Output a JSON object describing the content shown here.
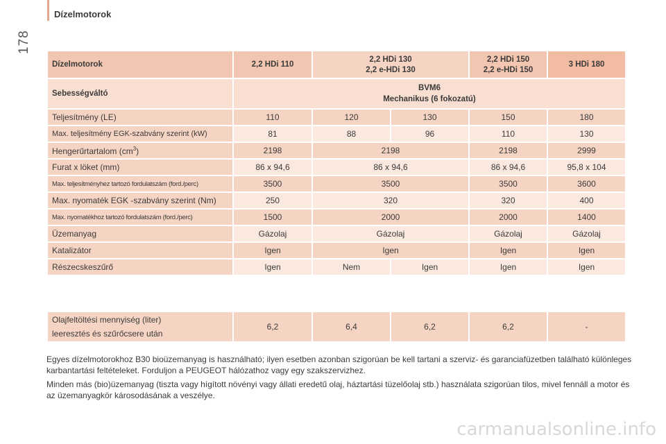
{
  "header": {
    "title": "Dízelmotorok",
    "page_number": "178"
  },
  "table": {
    "head_label": "Dízelmotorok",
    "engines": {
      "e1": [
        "2,2 HDi 110"
      ],
      "e2": [
        "2,2 HDi 130",
        "2,2 e-HDi 130"
      ],
      "e3": [
        "2,2 HDi 150",
        "2,2 e-HDi 150"
      ],
      "e4": [
        "3 HDi 180"
      ]
    },
    "gearbox": {
      "label": "Sebességváltó",
      "line1": "BVM6",
      "line2": "Mechanikus (6 fokozatú)"
    },
    "rows": [
      {
        "label": "Teljesítmény (LE)",
        "c1": "110",
        "c2a": "120",
        "c2b": "130",
        "c3": "150",
        "c4": "180"
      },
      {
        "label": "Max. teljesítmény EGK-szabvány szerint (kW)",
        "c1": "81",
        "c2a": "88",
        "c2b": "96",
        "c3": "110",
        "c4": "130"
      },
      {
        "label": "Hengerűrtartalom (cm",
        "sup": "3",
        "label_end": ")",
        "c1": "2198",
        "c2": "2198",
        "c3": "2198",
        "c4": "2999"
      },
      {
        "label": "Furat x löket (mm)",
        "c1": "86 x 94,6",
        "c2": "86 x 94,6",
        "c3": "86 x 94,6",
        "c4": "95,8 x 104"
      },
      {
        "label": "Max. teljesítményhez tartozó fordulatszám (ford./perc)",
        "c1": "3500",
        "c2": "3500",
        "c3": "3500",
        "c4": "3600"
      },
      {
        "label": "Max. nyomaték EGK -szabvány szerint (Nm)",
        "c1": "250",
        "c2": "320",
        "c3": "320",
        "c4": "400"
      },
      {
        "label": "Max. nyomatékhoz tartozó fordulatszám (ford./perc)",
        "c1": "1500",
        "c2": "2000",
        "c3": "2000",
        "c4": "1400"
      },
      {
        "label": "Üzemanyag",
        "c1": "Gázolaj",
        "c2": "Gázolaj",
        "c3": "Gázolaj",
        "c4": "Gázolaj"
      },
      {
        "label": "Katalizátor",
        "c1": "Igen",
        "c2": "Igen",
        "c3": "Igen",
        "c4": "Igen"
      },
      {
        "label": "Részecskeszűrő",
        "c1": "Igen",
        "c2a": "Nem",
        "c2b": "Igen",
        "c3": "Igen",
        "c4": "Igen"
      }
    ],
    "oil": {
      "line1": "Olajfeltöltési mennyiség (liter)",
      "line2": "leeresztés és szűrőcsere után",
      "c1": "6,2",
      "c2a": "6,4",
      "c2b": "6,2",
      "c3": "6,2",
      "c4": "-"
    }
  },
  "notes": [
    "Egyes dízelmotorokhoz B30 bioüzemanyag is használható; ilyen esetben azonban szigorúan be kell tartani a szerviz- és garanciafüzetben található különleges karbantartási feltételeket. Forduljon a PEUGEOT hálózathoz vagy egy szakszervizhez.",
    "Minden más (bio)üzemanyag (tiszta vagy hígított növényi vagy állati eredetű olaj, háztartási tüzelőolaj stb.) használata szigorúan tilos, mivel fennáll a motor és az üzemanyagkör károsodásának a veszélye."
  ],
  "watermark": "carmanualsonline.info",
  "colors": {
    "header": "#f2c6b0",
    "row_dark": "#f6d4c3",
    "row_light": "#fbe9e0",
    "accent": "#e2a78c"
  }
}
